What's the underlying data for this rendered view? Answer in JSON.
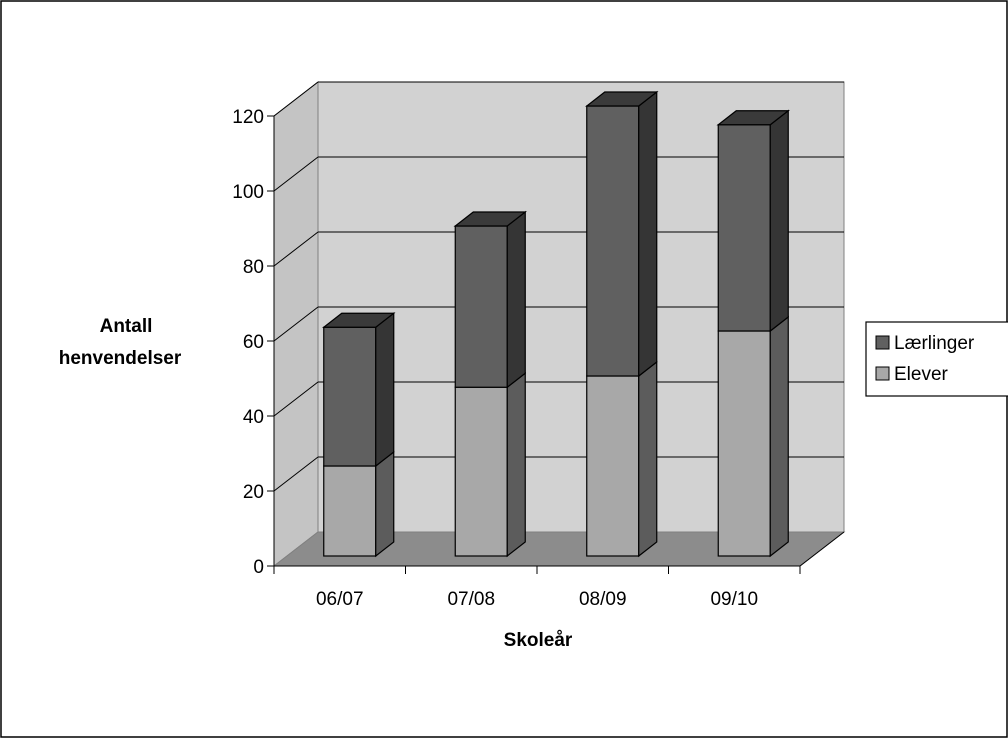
{
  "chart_data": {
    "type": "bar",
    "stacked": true,
    "three_d": true,
    "title": "",
    "xlabel": "Skoleår",
    "ylabel": "Antall henvendelser",
    "ylabel_lines": [
      "Antall",
      "henvendelser"
    ],
    "categories": [
      "06/07",
      "07/08",
      "08/09",
      "09/10"
    ],
    "ylim": [
      0,
      120
    ],
    "yticks": [
      0,
      20,
      40,
      60,
      80,
      100,
      120
    ],
    "series": [
      {
        "name": "Elever",
        "values": [
          24,
          45,
          48,
          60
        ],
        "color": "#a8a8a8"
      },
      {
        "name": "Lærlinger",
        "values": [
          37,
          43,
          72,
          55
        ],
        "color": "#606060"
      }
    ],
    "grid": true,
    "legend": "right",
    "legend_order": [
      "Lærlinger",
      "Elever"
    ]
  }
}
